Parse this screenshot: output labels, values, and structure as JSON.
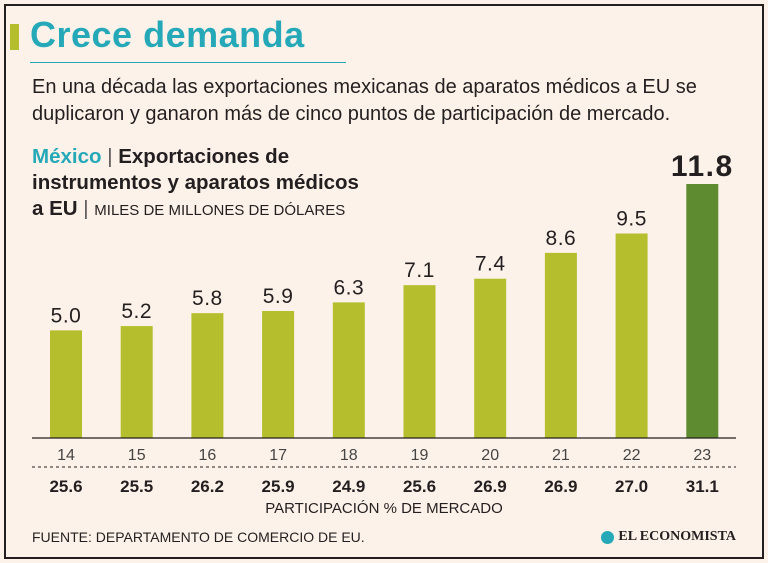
{
  "headline": "Crece demanda",
  "subtitle": "En una década las exportaciones mexicanas de aparatos médicos a EU se duplicaron y ganaron más de cinco puntos de participación de mercado.",
  "chart_heading": {
    "country": "México",
    "separator": " | ",
    "title_line1": "Exportaciones de",
    "title_line2": "instrumentos y aparatos médicos",
    "title_line3": "a EU",
    "unit": "MILES DE MILLONES DE DÓLARES"
  },
  "footer": {
    "source": "FUENTE: DEPARTAMENTO DE COMERCIO DE EU.",
    "brand": "EL ECONOMISTA"
  },
  "colors": {
    "bar": "#b5be2d",
    "bar_highlight": "#5e8a30",
    "accent": "#25a9b8",
    "text": "#231f20"
  },
  "chart_data": {
    "type": "bar",
    "title": "México | Exportaciones de instrumentos y aparatos médicos a EU",
    "ylabel": "MILES DE MILLONES DE DÓLARES",
    "categories": [
      "14",
      "15",
      "16",
      "17",
      "18",
      "19",
      "20",
      "21",
      "22",
      "23"
    ],
    "values": [
      5.0,
      5.2,
      5.8,
      5.9,
      6.3,
      7.1,
      7.4,
      8.6,
      9.5,
      11.8
    ],
    "value_labels": [
      "5.0",
      "5.2",
      "5.8",
      "5.9",
      "6.3",
      "7.1",
      "7.4",
      "8.6",
      "9.5",
      "11.8"
    ],
    "highlight_index": 9,
    "ylim": [
      0,
      12
    ],
    "secondary_row": {
      "label": "PARTICIPACIÓN % DE MERCADO",
      "values": [
        "25.6",
        "25.5",
        "26.2",
        "25.9",
        "24.9",
        "25.6",
        "26.9",
        "26.9",
        "27.0",
        "31.1"
      ]
    }
  }
}
